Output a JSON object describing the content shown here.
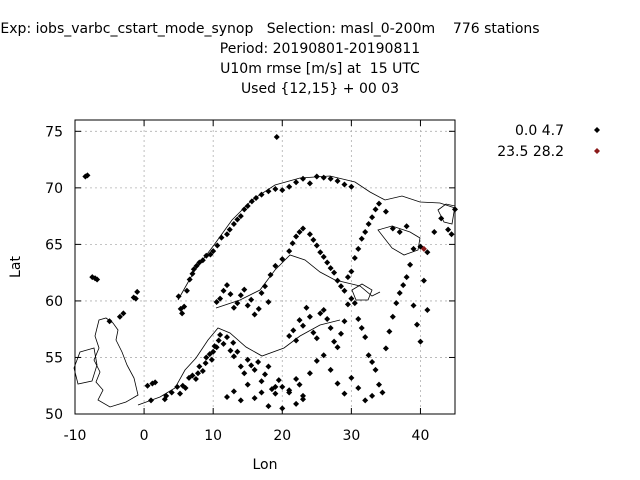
{
  "title_lines": [
    "Exp: iobs_varbc_cstart_mode_synop   Selection: masl_0-200m    776 stations",
    "Period: 20190801-20190811",
    "U10m rmse [m/s] at  15 UTC",
    "Used {12,15} + 00 03"
  ],
  "chart_data": {
    "type": "scatter",
    "xlabel": "Lon",
    "ylabel": "Lat",
    "xlim": [
      -10,
      45
    ],
    "ylim": [
      50,
      76
    ],
    "x_ticks": [
      "-10",
      "0",
      "10",
      "20",
      "30",
      "40"
    ],
    "y_ticks": [
      "50",
      "55",
      "60",
      "65",
      "70",
      "75"
    ],
    "x_tick_values": [
      -10,
      0,
      10,
      20,
      30,
      40
    ],
    "y_tick_values": [
      50,
      55,
      60,
      65,
      70,
      75
    ],
    "grid": true,
    "legend_position": "top-right, outside plot",
    "series": [
      {
        "name": "0.0 4.7",
        "color": "#000000",
        "points": [
          [
            -8.5,
            71
          ],
          [
            -8.2,
            71.1
          ],
          [
            -7.5,
            62.1
          ],
          [
            -7.1,
            62
          ],
          [
            -6.8,
            61.9
          ],
          [
            -5,
            58.2
          ],
          [
            -3.5,
            58.6
          ],
          [
            -3,
            58.9
          ],
          [
            -1.5,
            60.3
          ],
          [
            -1,
            60.8
          ],
          [
            -1.2,
            60.2
          ],
          [
            0.5,
            52.5
          ],
          [
            1,
            51.2
          ],
          [
            1.2,
            52.7
          ],
          [
            1.6,
            52.8
          ],
          [
            3,
            51.3
          ],
          [
            3.2,
            51.6
          ],
          [
            4,
            51.9
          ],
          [
            4.8,
            52.4
          ],
          [
            5.2,
            51.8
          ],
          [
            5.6,
            52.5
          ],
          [
            6,
            52.3
          ],
          [
            6.5,
            53.2
          ],
          [
            7,
            53.4
          ],
          [
            7.5,
            53.1
          ],
          [
            7.8,
            53.6
          ],
          [
            8,
            54.2
          ],
          [
            8.5,
            53.8
          ],
          [
            8.9,
            54.5
          ],
          [
            9,
            55
          ],
          [
            9.5,
            55.3
          ],
          [
            9.8,
            54.8
          ],
          [
            10,
            55.5
          ],
          [
            10.2,
            56
          ],
          [
            10.5,
            55.9
          ],
          [
            10.8,
            56.5
          ],
          [
            11,
            57
          ],
          [
            11.5,
            56.2
          ],
          [
            12,
            56.8
          ],
          [
            12.5,
            55.6
          ],
          [
            12.9,
            56.3
          ],
          [
            13,
            55.1
          ],
          [
            13.5,
            55.5
          ],
          [
            14,
            54.2
          ],
          [
            14.5,
            53.6
          ],
          [
            15,
            54.8
          ],
          [
            15.5,
            54.3
          ],
          [
            16,
            53.9
          ],
          [
            16.5,
            54.6
          ],
          [
            17,
            52.9
          ],
          [
            17.5,
            53.5
          ],
          [
            18,
            54.2
          ],
          [
            18.5,
            52.2
          ],
          [
            19,
            51.8
          ],
          [
            19.5,
            53
          ],
          [
            20,
            52.4
          ],
          [
            21,
            51.9
          ],
          [
            22,
            53.1
          ],
          [
            22.5,
            52.6
          ],
          [
            23,
            51.6
          ],
          [
            5,
            60.4
          ],
          [
            5.3,
            59.3
          ],
          [
            5.5,
            58.9
          ],
          [
            5.8,
            59.5
          ],
          [
            6.2,
            60.9
          ],
          [
            6.6,
            61.9
          ],
          [
            7,
            62.4
          ],
          [
            7.2,
            62.8
          ],
          [
            7.6,
            63.1
          ],
          [
            8,
            63.4
          ],
          [
            8.5,
            63.6
          ],
          [
            9,
            64
          ],
          [
            9.6,
            64.1
          ],
          [
            10,
            64.4
          ],
          [
            10.6,
            64.9
          ],
          [
            11.2,
            65.6
          ],
          [
            12,
            65.9
          ],
          [
            12.4,
            66.3
          ],
          [
            13,
            66.8
          ],
          [
            13.5,
            67.2
          ],
          [
            14,
            67.5
          ],
          [
            14.5,
            68.1
          ],
          [
            15,
            68.4
          ],
          [
            15.6,
            68.8
          ],
          [
            16.2,
            69.1
          ],
          [
            17,
            69.4
          ],
          [
            18,
            69.7
          ],
          [
            19,
            69.9
          ],
          [
            19.2,
            74.5
          ],
          [
            20,
            69.8
          ],
          [
            21,
            70.1
          ],
          [
            22,
            70.5
          ],
          [
            23,
            70.8
          ],
          [
            24,
            70.4
          ],
          [
            25,
            71
          ],
          [
            26,
            70.9
          ],
          [
            27,
            70.8
          ],
          [
            28,
            70.6
          ],
          [
            29,
            70.3
          ],
          [
            30,
            70.1
          ],
          [
            10.5,
            59.9
          ],
          [
            11,
            60.2
          ],
          [
            11.5,
            60.9
          ],
          [
            12,
            61.4
          ],
          [
            12.5,
            60.6
          ],
          [
            13,
            59.4
          ],
          [
            13.5,
            59.8
          ],
          [
            14,
            60.5
          ],
          [
            14.5,
            61
          ],
          [
            15,
            59.6
          ],
          [
            15.5,
            60.1
          ],
          [
            16,
            58.8
          ],
          [
            16.6,
            59.3
          ],
          [
            17,
            60.7
          ],
          [
            17.5,
            61.3
          ],
          [
            18,
            59.9
          ],
          [
            18.3,
            62.3
          ],
          [
            19,
            63.1
          ],
          [
            20,
            63.7
          ],
          [
            21,
            64.4
          ],
          [
            21.5,
            65.1
          ],
          [
            22,
            65.7
          ],
          [
            22.5,
            66.1
          ],
          [
            23,
            66.4
          ],
          [
            24,
            65.9
          ],
          [
            24.5,
            65.4
          ],
          [
            25,
            64.9
          ],
          [
            25.5,
            64.3
          ],
          [
            26,
            63.9
          ],
          [
            26.5,
            63.4
          ],
          [
            27,
            62.9
          ],
          [
            27.5,
            62.5
          ],
          [
            28,
            61.8
          ],
          [
            28.5,
            61.3
          ],
          [
            29,
            60.9
          ],
          [
            29.5,
            62.1
          ],
          [
            30,
            62.6
          ],
          [
            30.5,
            63.8
          ],
          [
            31,
            64.6
          ],
          [
            31.5,
            65.5
          ],
          [
            32,
            66.1
          ],
          [
            32.5,
            66.8
          ],
          [
            33,
            67.4
          ],
          [
            33.5,
            68.1
          ],
          [
            34,
            68.6
          ],
          [
            35,
            67.9
          ],
          [
            36,
            66.4
          ],
          [
            37,
            66.1
          ],
          [
            38,
            66.6
          ],
          [
            39,
            64.6
          ],
          [
            40,
            64.8
          ],
          [
            41,
            64.3
          ],
          [
            42,
            66.1
          ],
          [
            43,
            67.3
          ],
          [
            44,
            66.3
          ],
          [
            44.5,
            65.9
          ],
          [
            45,
            68.1
          ],
          [
            21,
            56.9
          ],
          [
            21.6,
            57.4
          ],
          [
            22,
            56.5
          ],
          [
            22.5,
            58.3
          ],
          [
            23,
            57.8
          ],
          [
            23.5,
            59.4
          ],
          [
            24,
            58.6
          ],
          [
            24.5,
            57.2
          ],
          [
            25,
            56.7
          ],
          [
            25.5,
            58.9
          ],
          [
            26,
            59.2
          ],
          [
            26.5,
            58.4
          ],
          [
            27,
            57.6
          ],
          [
            27.5,
            56.4
          ],
          [
            28,
            55.9
          ],
          [
            28.5,
            57.1
          ],
          [
            29,
            58.2
          ],
          [
            29.5,
            59.7
          ],
          [
            30,
            60.2
          ],
          [
            30.5,
            59.8
          ],
          [
            31,
            58.4
          ],
          [
            31.5,
            57.6
          ],
          [
            32,
            56.8
          ],
          [
            32.5,
            55.2
          ],
          [
            33,
            54.6
          ],
          [
            33.5,
            53.9
          ],
          [
            34,
            52.6
          ],
          [
            34.5,
            51.9
          ],
          [
            35,
            55.8
          ],
          [
            35.5,
            57.3
          ],
          [
            36,
            58.6
          ],
          [
            36.5,
            59.8
          ],
          [
            37,
            60.7
          ],
          [
            37.5,
            61.4
          ],
          [
            38,
            62.1
          ],
          [
            38.5,
            63.2
          ],
          [
            39,
            59.6
          ],
          [
            39.5,
            57.9
          ],
          [
            40,
            56.4
          ],
          [
            40.5,
            61.8
          ],
          [
            41,
            59.2
          ],
          [
            12,
            51.5
          ],
          [
            13,
            52
          ],
          [
            14,
            51.2
          ],
          [
            15,
            52.6
          ],
          [
            16,
            51.4
          ],
          [
            17,
            51.9
          ],
          [
            18,
            50.7
          ],
          [
            19,
            52.4
          ],
          [
            20,
            50.5
          ],
          [
            21,
            52.1
          ],
          [
            22,
            50.9
          ],
          [
            23,
            51.3
          ],
          [
            24,
            53.6
          ],
          [
            25,
            54.7
          ],
          [
            26,
            55.2
          ],
          [
            27,
            53.9
          ],
          [
            28,
            52.7
          ],
          [
            29,
            51.8
          ],
          [
            30,
            53.2
          ],
          [
            31,
            52.3
          ],
          [
            32,
            51.2
          ],
          [
            33,
            51.6
          ]
        ]
      },
      {
        "name": "23.5 28.2",
        "color": "#8b1a1a",
        "points": [
          [
            40.5,
            64.6
          ]
        ]
      }
    ]
  }
}
